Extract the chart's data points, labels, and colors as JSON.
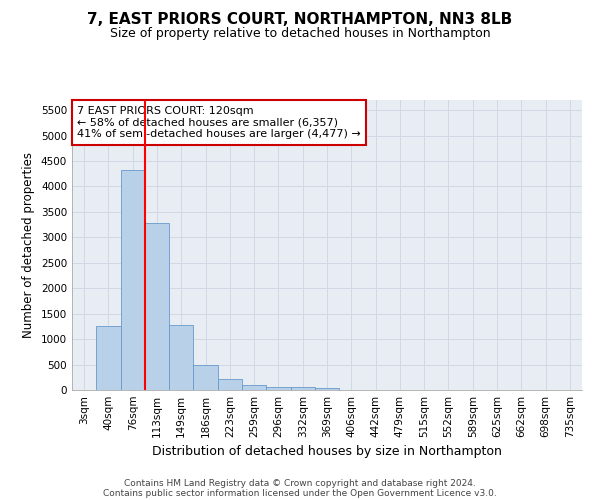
{
  "title_line1": "7, EAST PRIORS COURT, NORTHAMPTON, NN3 8LB",
  "title_line2": "Size of property relative to detached houses in Northampton",
  "xlabel": "Distribution of detached houses by size in Northampton",
  "ylabel": "Number of detached properties",
  "bar_labels": [
    "3sqm",
    "40sqm",
    "76sqm",
    "113sqm",
    "149sqm",
    "186sqm",
    "223sqm",
    "259sqm",
    "296sqm",
    "332sqm",
    "369sqm",
    "406sqm",
    "442sqm",
    "479sqm",
    "515sqm",
    "552sqm",
    "589sqm",
    "625sqm",
    "662sqm",
    "698sqm",
    "735sqm"
  ],
  "bar_values": [
    0,
    1260,
    4320,
    3290,
    1275,
    485,
    220,
    90,
    65,
    50,
    45,
    0,
    0,
    0,
    0,
    0,
    0,
    0,
    0,
    0,
    0
  ],
  "bar_color": "#b8d0e8",
  "bar_edge_color": "#6699cc",
  "red_line_index": 2.5,
  "annotation_text": "7 EAST PRIORS COURT: 120sqm\n← 58% of detached houses are smaller (6,357)\n41% of semi-detached houses are larger (4,477) →",
  "annotation_box_facecolor": "#ffffff",
  "annotation_box_edgecolor": "#cc0000",
  "annotation_fontsize": 8,
  "ylim": [
    0,
    5700
  ],
  "yticks": [
    0,
    500,
    1000,
    1500,
    2000,
    2500,
    3000,
    3500,
    4000,
    4500,
    5000,
    5500
  ],
  "grid_color": "#d0d8e4",
  "bg_color": "#e8edf4",
  "title1_fontsize": 11,
  "title2_fontsize": 9,
  "xlabel_fontsize": 9,
  "ylabel_fontsize": 8.5,
  "tick_fontsize": 7.5,
  "footer_line1": "Contains HM Land Registry data © Crown copyright and database right 2024.",
  "footer_line2": "Contains public sector information licensed under the Open Government Licence v3.0.",
  "footer_fontsize": 6.5
}
